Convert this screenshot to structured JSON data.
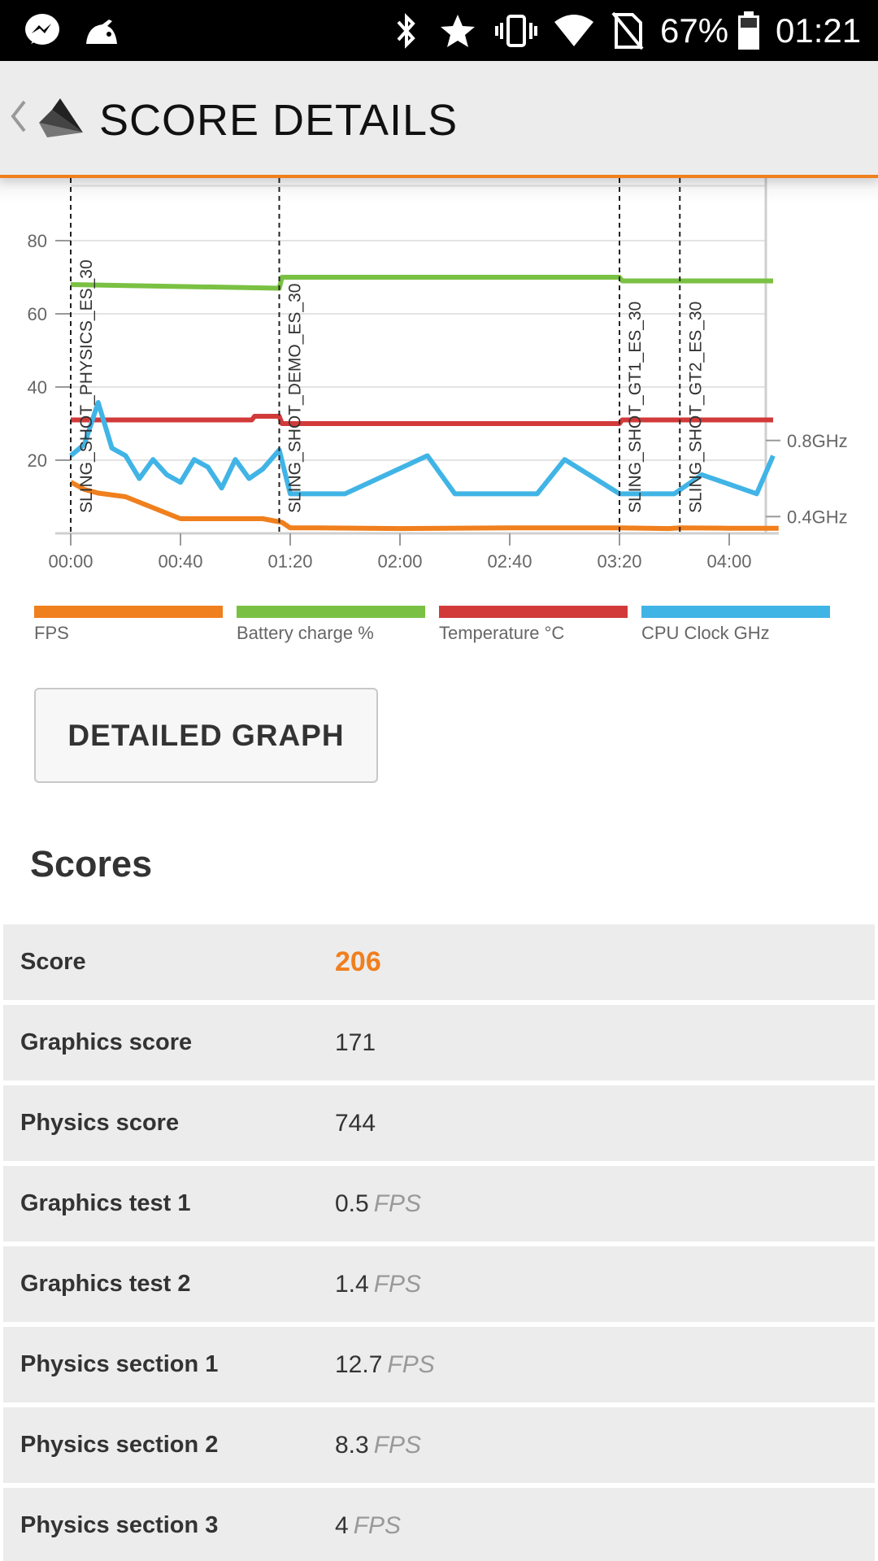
{
  "status_bar": {
    "battery_percent": "67%",
    "time": "01:21",
    "icons": [
      "messenger-icon",
      "app-icon",
      "bluetooth-icon",
      "star-icon",
      "vibrate-icon",
      "wifi-icon",
      "no-sim-icon",
      "battery-icon"
    ]
  },
  "app_bar": {
    "title": "SCORE DETAILS",
    "back_icon": "back-chevron-icon",
    "logo_icon": "3dmark-logo-icon"
  },
  "chart_data": {
    "type": "line",
    "x_ticks": [
      "00:00",
      "00:40",
      "01:20",
      "02:00",
      "02:40",
      "03:20",
      "04:00"
    ],
    "y_ticks_left": [
      "20",
      "40",
      "60",
      "80"
    ],
    "y_ticks_right": [
      "0.4GHz",
      "0.8GHz"
    ],
    "markers": [
      {
        "label": "SLING_SHOT_PHYSICS_ES_30",
        "t": "00:00"
      },
      {
        "label": "SLING_SHOT_DEMO_ES_30",
        "t": "01:16"
      },
      {
        "label": "SLING_SHOT_GT1_ES_30",
        "t": "03:20"
      },
      {
        "label": "SLING_SHOT_GT2_ES_30",
        "t": "03:42"
      }
    ],
    "series": [
      {
        "name": "FPS",
        "color": "#f07f1d",
        "t_sec": [
          0,
          5,
          10,
          20,
          30,
          40,
          50,
          60,
          70,
          77,
          80,
          90,
          120,
          160,
          200,
          218,
          222,
          240,
          258
        ],
        "values": [
          14,
          12,
          11,
          10,
          7,
          4,
          4,
          4,
          4,
          3,
          1.5,
          1.5,
          1.3,
          1.5,
          1.5,
          1.3,
          1.5,
          1.4,
          1.4
        ]
      },
      {
        "name": "Battery charge %",
        "color": "#7ac143",
        "t_sec": [
          0,
          76,
          77,
          200,
          201,
          256
        ],
        "values": [
          68,
          67,
          70,
          70,
          69,
          69
        ]
      },
      {
        "name": "Temperature °C",
        "color": "#d23a3a",
        "t_sec": [
          0,
          66,
          67,
          76,
          77,
          200,
          201,
          256
        ],
        "values": [
          31,
          31,
          32,
          32,
          30,
          30,
          31,
          31
        ]
      },
      {
        "name": "CPU Clock GHz",
        "color": "#41b4e6",
        "t_sec": [
          0,
          5,
          10,
          15,
          20,
          25,
          30,
          35,
          40,
          45,
          50,
          55,
          60,
          65,
          70,
          76,
          80,
          100,
          130,
          140,
          150,
          170,
          180,
          200,
          210,
          220,
          230,
          250,
          256
        ],
        "values": [
          0.72,
          0.78,
          1.0,
          0.76,
          0.72,
          0.6,
          0.7,
          0.62,
          0.58,
          0.7,
          0.66,
          0.55,
          0.7,
          0.6,
          0.65,
          0.75,
          0.52,
          0.52,
          0.72,
          0.52,
          0.52,
          0.52,
          0.7,
          0.52,
          0.52,
          0.52,
          0.62,
          0.52,
          0.72
        ]
      }
    ]
  },
  "legend": {
    "fps": "FPS",
    "battery": "Battery charge %",
    "temperature": "Temperature °C",
    "cpu": "CPU Clock GHz"
  },
  "detailed_graph_button": "DETAILED GRAPH",
  "scores": {
    "heading": "Scores",
    "rows": [
      {
        "label": "Score",
        "value": "206",
        "unit": ""
      },
      {
        "label": "Graphics score",
        "value": "171",
        "unit": ""
      },
      {
        "label": "Physics score",
        "value": "744",
        "unit": ""
      },
      {
        "label": "Graphics test 1",
        "value": "0.5",
        "unit": "FPS"
      },
      {
        "label": "Graphics test 2",
        "value": "1.4",
        "unit": "FPS"
      },
      {
        "label": "Physics section 1",
        "value": "12.7",
        "unit": "FPS"
      },
      {
        "label": "Physics section 2",
        "value": "8.3",
        "unit": "FPS"
      },
      {
        "label": "Physics section 3",
        "value": "4",
        "unit": "FPS"
      }
    ]
  },
  "colors": {
    "accent": "#f07f1d",
    "fps": "#f07f1d",
    "battery": "#7ac143",
    "temperature": "#d23a3a",
    "cpu": "#41b4e6"
  }
}
